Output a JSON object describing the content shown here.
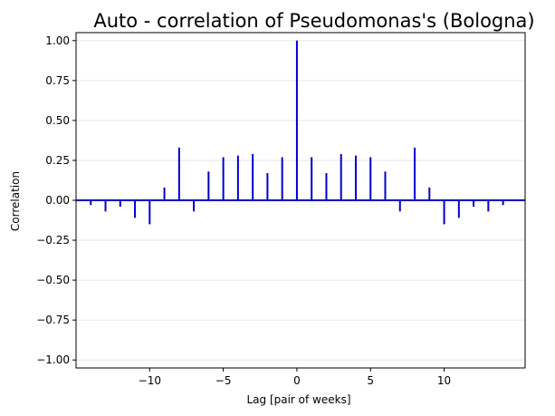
{
  "chart_data": {
    "type": "bar",
    "style": "stem",
    "title": "Auto - correlation of Pseudomonas's (Bologna)",
    "xlabel": "Lag [pair of weeks]",
    "ylabel": "Correlation",
    "xlim": [
      -15,
      15.5
    ],
    "ylim": [
      -1.05,
      1.05
    ],
    "xticks": [
      -10,
      -5,
      0,
      5,
      10
    ],
    "yticks": [
      -1.0,
      -0.75,
      -0.5,
      -0.25,
      0.0,
      0.25,
      0.5,
      0.75,
      1.0
    ],
    "ytick_labels": [
      "−1.00",
      "−0.75",
      "−0.50",
      "−0.25",
      "0.00",
      "0.25",
      "0.50",
      "0.75",
      "1.00"
    ],
    "xtick_labels": [
      "−10",
      "−5",
      "0",
      "5",
      "10"
    ],
    "grid": "horizontal",
    "color": "#0000cc",
    "lags": [
      -14,
      -13,
      -12,
      -11,
      -10,
      -9,
      -8,
      -7,
      -6,
      -5,
      -4,
      -3,
      -2,
      -1,
      0,
      1,
      2,
      3,
      4,
      5,
      6,
      7,
      8,
      9,
      10,
      11,
      12,
      13,
      14
    ],
    "values": [
      -0.03,
      -0.07,
      -0.04,
      -0.11,
      -0.15,
      0.08,
      0.33,
      -0.07,
      0.18,
      0.27,
      0.28,
      0.29,
      0.17,
      0.27,
      1.0,
      0.27,
      0.17,
      0.29,
      0.28,
      0.27,
      0.18,
      -0.07,
      0.33,
      0.08,
      -0.15,
      -0.11,
      -0.04,
      -0.07,
      -0.03
    ]
  }
}
